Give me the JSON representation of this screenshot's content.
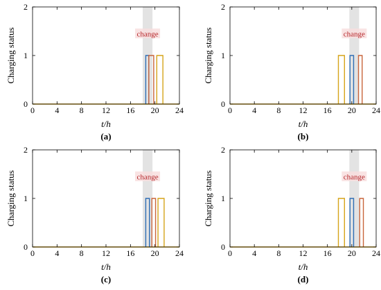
{
  "figure": {
    "colors": {
      "blue": "#2e6db4",
      "orange": "#c8643a",
      "gold": "#d6a419",
      "shade": "#e3e3e3",
      "axis": "#000000",
      "change_text": "#b5262a",
      "change_box": "#f8dede"
    }
  },
  "chart_data": [
    {
      "type": "step",
      "panel_label": "(a)",
      "xlabel": "t/h",
      "ylabel": "Charging status",
      "xlim": [
        0,
        24
      ],
      "ylim": [
        0,
        2
      ],
      "xticks": [
        "0",
        "4",
        "8",
        "12",
        "16",
        "20",
        "24"
      ],
      "yticks": [
        "0",
        "1",
        "2"
      ],
      "shaded_interval": [
        18,
        19.6
      ],
      "annotation": "change",
      "series": [
        {
          "color": "blue",
          "intervals": [
            [
              18.5,
              19.0
            ]
          ]
        },
        {
          "color": "orange",
          "intervals": [
            [
              19.0,
              19.8
            ]
          ]
        },
        {
          "color": "gold",
          "intervals": [
            [
              20.3,
              21.3
            ]
          ]
        }
      ]
    },
    {
      "type": "step",
      "panel_label": "(b)",
      "xlabel": "t/h",
      "ylabel": "Charging status",
      "xlim": [
        0,
        24
      ],
      "ylim": [
        0,
        2
      ],
      "xticks": [
        "0",
        "4",
        "8",
        "12",
        "16",
        "20",
        "24"
      ],
      "yticks": [
        "0",
        "1",
        "2"
      ],
      "shaded_interval": [
        19.6,
        21.2
      ],
      "annotation": "change",
      "series": [
        {
          "color": "gold",
          "intervals": [
            [
              17.8,
              18.8
            ]
          ]
        },
        {
          "color": "blue",
          "intervals": [
            [
              19.7,
              20.3
            ]
          ]
        },
        {
          "color": "orange",
          "intervals": [
            [
              21.1,
              21.7
            ]
          ]
        }
      ]
    },
    {
      "type": "step",
      "panel_label": "(c)",
      "xlabel": "t/h",
      "ylabel": "Charging status",
      "xlim": [
        0,
        24
      ],
      "ylim": [
        0,
        2
      ],
      "xticks": [
        "0",
        "4",
        "8",
        "12",
        "16",
        "20",
        "24"
      ],
      "yticks": [
        "0",
        "1",
        "2"
      ],
      "shaded_interval": [
        18,
        19.6
      ],
      "annotation": "change",
      "series": [
        {
          "color": "blue",
          "intervals": [
            [
              18.5,
              19.1
            ]
          ]
        },
        {
          "color": "orange",
          "intervals": [
            [
              19.5,
              20.1
            ]
          ]
        },
        {
          "color": "gold",
          "intervals": [
            [
              20.5,
              21.5
            ]
          ]
        }
      ]
    },
    {
      "type": "step",
      "panel_label": "(d)",
      "xlabel": "t/h",
      "ylabel": "Charging status",
      "xlim": [
        0,
        24
      ],
      "ylim": [
        0,
        2
      ],
      "xticks": [
        "0",
        "4",
        "8",
        "12",
        "16",
        "20",
        "24"
      ],
      "yticks": [
        "0",
        "1",
        "2"
      ],
      "shaded_interval": [
        19.6,
        21.2
      ],
      "annotation": "change",
      "series": [
        {
          "color": "gold",
          "intervals": [
            [
              17.8,
              18.8
            ]
          ]
        },
        {
          "color": "blue",
          "intervals": [
            [
              19.7,
              20.3
            ]
          ]
        },
        {
          "color": "orange",
          "intervals": [
            [
              21.3,
              21.9
            ]
          ]
        }
      ]
    }
  ]
}
